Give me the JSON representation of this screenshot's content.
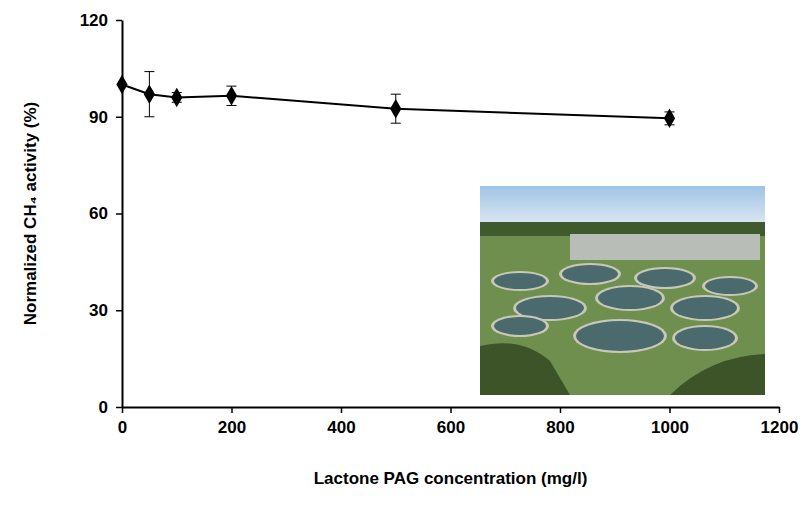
{
  "chart_data": {
    "type": "line",
    "x_label": "Lactone PAG concentration (mg/l)",
    "y_label": "Normalized CH₄ activity (%)",
    "x": [
      0,
      50,
      100,
      200,
      500,
      1000
    ],
    "series": [
      {
        "color": "#000000",
        "marker": "diamond",
        "line_style": "solid",
        "values": [
          100,
          97,
          96,
          96.5,
          92.5,
          89.5
        ],
        "errors": [
          0,
          7,
          1.5,
          3,
          4.5,
          2
        ]
      }
    ],
    "xlim": [
      0,
      1200
    ],
    "xticks": [
      0,
      200,
      400,
      600,
      800,
      1000,
      1200
    ],
    "ylim": [
      0,
      120
    ],
    "yticks": [
      0,
      30,
      60,
      90,
      120
    ],
    "grid": false
  }
}
